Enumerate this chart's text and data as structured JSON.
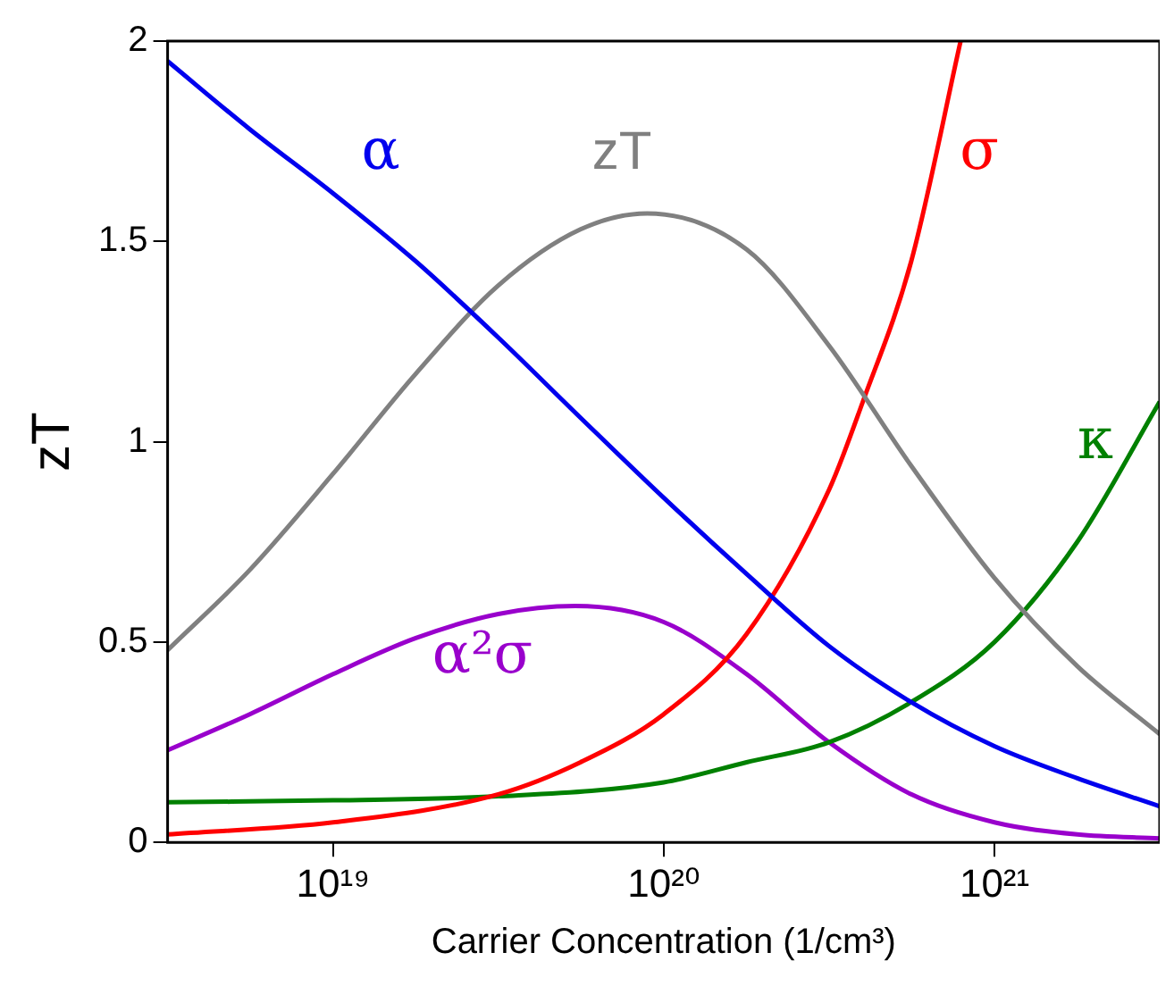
{
  "chart_data": {
    "type": "line",
    "xlabel": "Carrier Concentration (1/cm³)",
    "ylabel": "zT",
    "log": "x",
    "grid": false,
    "legend": false,
    "xlim": [
      3.16e+18,
      3.16e+21
    ],
    "xticks": [
      {
        "value": 1e+19,
        "label": "10¹⁹"
      },
      {
        "value": 1e+20,
        "label": "10²⁰"
      },
      {
        "value": 1e+21,
        "label": "10²¹"
      }
    ],
    "ylim": [
      0,
      2
    ],
    "yticks": [
      0,
      0.5,
      1,
      1.5,
      2
    ],
    "series": [
      {
        "name": "α",
        "color": "#0000ee",
        "x": [
          3.16e+18,
          5.6e+18,
          1e+19,
          1.78e+19,
          3.16e+19,
          5.6e+19,
          1e+20,
          1.78e+20,
          3.16e+20,
          5.6e+20,
          1e+21,
          1.78e+21,
          3.16e+21
        ],
        "values": [
          1.95,
          1.78,
          1.62,
          1.45,
          1.26,
          1.06,
          0.86,
          0.67,
          0.49,
          0.35,
          0.24,
          0.16,
          0.09
        ]
      },
      {
        "name": "zT",
        "color": "#808080",
        "x": [
          3.16e+18,
          5.6e+18,
          1e+19,
          1.78e+19,
          3.16e+19,
          5.6e+19,
          8.9e+19,
          1.78e+20,
          3.16e+20,
          5.6e+20,
          1e+21,
          1.78e+21,
          3.16e+21
        ],
        "values": [
          0.48,
          0.68,
          0.92,
          1.17,
          1.39,
          1.53,
          1.57,
          1.48,
          1.24,
          0.94,
          0.66,
          0.44,
          0.27
        ]
      },
      {
        "name": "σ",
        "color": "#ff0000",
        "x": [
          3.16e+18,
          1e+19,
          3.16e+19,
          5.6e+19,
          1e+20,
          1.78e+20,
          3.16e+20,
          4e+20,
          5.6e+20,
          7.9e+20
        ],
        "values": [
          0.02,
          0.05,
          0.12,
          0.2,
          0.32,
          0.52,
          0.88,
          1.1,
          1.45,
          2.0
        ]
      },
      {
        "name": "κ",
        "color": "#008000",
        "x": [
          3.16e+18,
          1e+19,
          3.16e+19,
          1e+20,
          1.78e+20,
          3.16e+20,
          5.6e+20,
          1e+21,
          1.78e+21,
          3.16e+21
        ],
        "values": [
          0.1,
          0.105,
          0.115,
          0.15,
          0.2,
          0.25,
          0.35,
          0.5,
          0.75,
          1.1
        ]
      },
      {
        "name": "α²σ",
        "color": "#9900cc",
        "x": [
          3.16e+18,
          5.6e+18,
          1e+19,
          1.78e+19,
          3.16e+19,
          5.4e+19,
          1e+20,
          1.78e+20,
          3.16e+20,
          5.6e+20,
          1e+21,
          1.78e+21,
          3.16e+21
        ],
        "values": [
          0.23,
          0.32,
          0.42,
          0.51,
          0.57,
          0.59,
          0.55,
          0.42,
          0.25,
          0.12,
          0.05,
          0.02,
          0.01
        ]
      }
    ]
  }
}
